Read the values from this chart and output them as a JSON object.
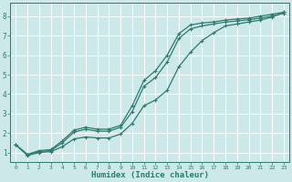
{
  "title": "",
  "xlabel": "Humidex (Indice chaleur)",
  "ylabel": "",
  "background_color": "#cce8e8",
  "line_color": "#2d7a6e",
  "grid_color": "#ffffff",
  "xlim": [
    -0.5,
    23.5
  ],
  "ylim": [
    0.5,
    8.7
  ],
  "xticks": [
    0,
    1,
    2,
    3,
    4,
    5,
    6,
    7,
    8,
    9,
    10,
    11,
    12,
    13,
    14,
    15,
    16,
    17,
    18,
    19,
    20,
    21,
    22,
    23
  ],
  "yticks": [
    1,
    2,
    3,
    4,
    5,
    6,
    7,
    8
  ],
  "line1_x": [
    0,
    1,
    2,
    3,
    4,
    5,
    6,
    7,
    8,
    9,
    10,
    11,
    12,
    13,
    14,
    15,
    16,
    17,
    18,
    19,
    20,
    21,
    22,
    23
  ],
  "line1_y": [
    1.4,
    0.9,
    1.1,
    1.15,
    1.6,
    2.15,
    2.3,
    2.2,
    2.2,
    2.4,
    3.4,
    4.7,
    5.2,
    6.0,
    7.1,
    7.55,
    7.65,
    7.7,
    7.8,
    7.85,
    7.9,
    8.0,
    8.1,
    8.2
  ],
  "line2_x": [
    0,
    1,
    2,
    3,
    4,
    5,
    6,
    7,
    8,
    9,
    10,
    11,
    12,
    13,
    14,
    15,
    16,
    17,
    18,
    19,
    20,
    21,
    22,
    23
  ],
  "line2_y": [
    1.4,
    0.9,
    1.05,
    1.1,
    1.5,
    2.05,
    2.2,
    2.1,
    2.1,
    2.3,
    3.1,
    4.4,
    4.85,
    5.65,
    6.85,
    7.35,
    7.5,
    7.6,
    7.7,
    7.75,
    7.82,
    7.9,
    8.0,
    8.15
  ],
  "line3_x": [
    0,
    1,
    2,
    3,
    4,
    5,
    6,
    7,
    8,
    9,
    10,
    11,
    12,
    13,
    14,
    15,
    16,
    17,
    18,
    19,
    20,
    21,
    22,
    23
  ],
  "line3_y": [
    1.4,
    0.85,
    1.0,
    1.05,
    1.3,
    1.7,
    1.8,
    1.75,
    1.75,
    1.95,
    2.5,
    3.4,
    3.7,
    4.2,
    5.4,
    6.15,
    6.75,
    7.15,
    7.5,
    7.6,
    7.7,
    7.8,
    7.95,
    8.2
  ]
}
